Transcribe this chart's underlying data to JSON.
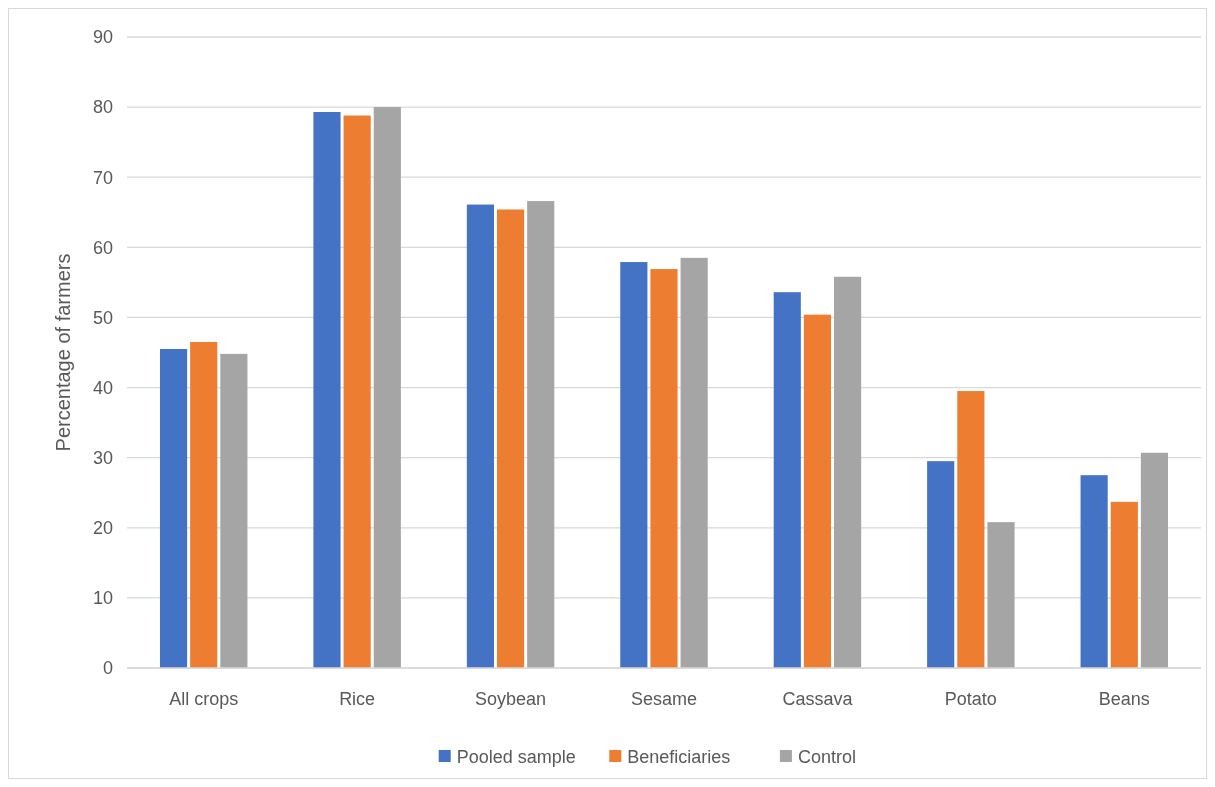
{
  "chart_data": {
    "type": "bar",
    "ylabel": "Percentage of farmers",
    "categories": [
      "All crops",
      "Rice",
      "Soybean",
      "Sesame",
      "Cassava",
      "Potato",
      "Beans"
    ],
    "series": [
      {
        "name": "Pooled sample",
        "color": "#4472c4",
        "values": [
          45.5,
          79.3,
          66.1,
          57.9,
          53.6,
          29.5,
          27.5
        ]
      },
      {
        "name": "Beneficiaries",
        "color": "#ed7d31",
        "values": [
          46.5,
          78.8,
          65.4,
          56.9,
          50.4,
          39.5,
          23.7
        ]
      },
      {
        "name": "Control",
        "color": "#a5a5a5",
        "values": [
          44.8,
          80.0,
          66.6,
          58.5,
          55.8,
          20.8,
          30.7
        ]
      }
    ],
    "ylim": [
      0,
      90
    ],
    "yticks": [
      0,
      10,
      20,
      30,
      40,
      50,
      60,
      70,
      80,
      90
    ],
    "grid": "y",
    "legend": "bottom"
  }
}
